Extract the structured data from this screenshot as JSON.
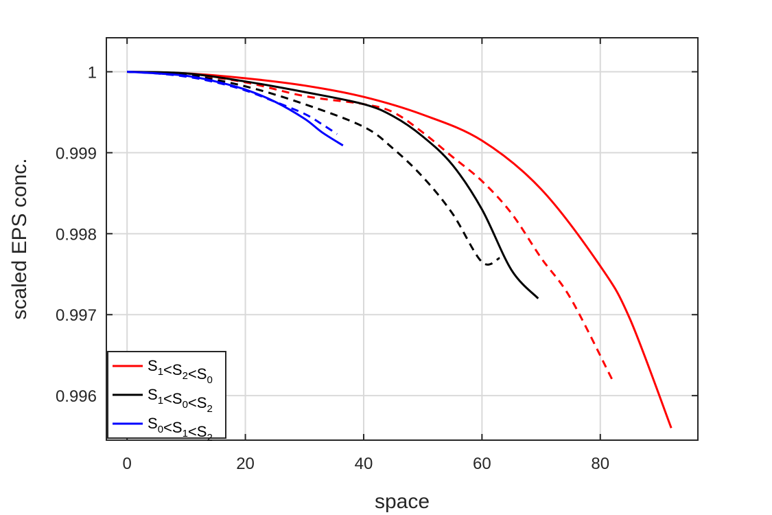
{
  "chart_data": {
    "type": "line",
    "title": "",
    "xlabel": "space",
    "ylabel": "scaled EPS conc.",
    "xlim": [
      -3.5,
      96.5
    ],
    "ylim": [
      0.99545,
      1.00042
    ],
    "xticks": [
      0,
      20,
      40,
      60,
      80
    ],
    "xtick_labels": [
      "0",
      "20",
      "40",
      "60",
      "80"
    ],
    "yticks": [
      0.996,
      0.997,
      0.998,
      0.999,
      1
    ],
    "ytick_labels": [
      "0.996",
      "0.997",
      "0.998",
      "0.999",
      "1"
    ],
    "grid": true,
    "legend_placement": "bottom-left",
    "colors": {
      "red": "#ff0000",
      "black": "#000000",
      "blue": "#0000ff"
    },
    "legend": [
      {
        "color": "#ff0000",
        "parts": [
          [
            "S",
            "1"
          ],
          [
            "<S",
            "2"
          ],
          [
            "<S",
            "0"
          ]
        ]
      },
      {
        "color": "#000000",
        "parts": [
          [
            "S",
            "1"
          ],
          [
            "<S",
            "0"
          ],
          [
            "<S",
            "2"
          ]
        ]
      },
      {
        "color": "#0000ff",
        "parts": [
          [
            "S",
            "0"
          ],
          [
            "<S",
            "1"
          ],
          [
            "<S",
            "2"
          ]
        ]
      }
    ],
    "series": [
      {
        "color": "#ff0000",
        "style": "solid",
        "x": [
          0,
          10,
          20,
          30,
          40,
          50,
          60,
          70,
          80,
          85,
          92
        ],
        "y": [
          1.0,
          0.99998,
          0.99992,
          0.99983,
          0.99969,
          0.99947,
          0.99915,
          0.99855,
          0.9976,
          0.99695,
          0.9956
        ]
      },
      {
        "color": "#ff0000",
        "style": "dashed",
        "x": [
          0,
          10,
          20,
          30,
          40,
          45,
          50,
          55,
          60,
          65,
          70,
          75,
          82
        ],
        "y": [
          1.0,
          0.99997,
          0.99987,
          0.9997,
          0.9996,
          0.9995,
          0.99925,
          0.99895,
          0.99865,
          0.99825,
          0.9977,
          0.9972,
          0.9962
        ]
      },
      {
        "color": "#000000",
        "style": "solid",
        "x": [
          0,
          10,
          20,
          30,
          40,
          45,
          50,
          55,
          60,
          65,
          69.5
        ],
        "y": [
          1.0,
          0.99998,
          0.99988,
          0.99975,
          0.9996,
          0.99945,
          0.9992,
          0.99885,
          0.9983,
          0.99755,
          0.9972
        ]
      },
      {
        "color": "#000000",
        "style": "dashed",
        "x": [
          0,
          10,
          20,
          30,
          40,
          45,
          50,
          55,
          60,
          63
        ],
        "y": [
          1.0,
          0.99996,
          0.99982,
          0.9996,
          0.99932,
          0.99905,
          0.9987,
          0.99825,
          0.99765,
          0.9977
        ]
      },
      {
        "color": "#0000ff",
        "style": "solid",
        "x": [
          0,
          5,
          10,
          15,
          20,
          25,
          30,
          33,
          36.5
        ],
        "y": [
          1.0,
          0.99998,
          0.99995,
          0.99988,
          0.99978,
          0.99963,
          0.99942,
          0.99925,
          0.99909
        ]
      },
      {
        "color": "#0000ff",
        "style": "dashed",
        "x": [
          0,
          5,
          10,
          15,
          20,
          25,
          30,
          33,
          35.5
        ],
        "y": [
          1.0,
          0.99998,
          0.99994,
          0.99987,
          0.99977,
          0.99963,
          0.99948,
          0.99935,
          0.99923
        ]
      }
    ]
  }
}
